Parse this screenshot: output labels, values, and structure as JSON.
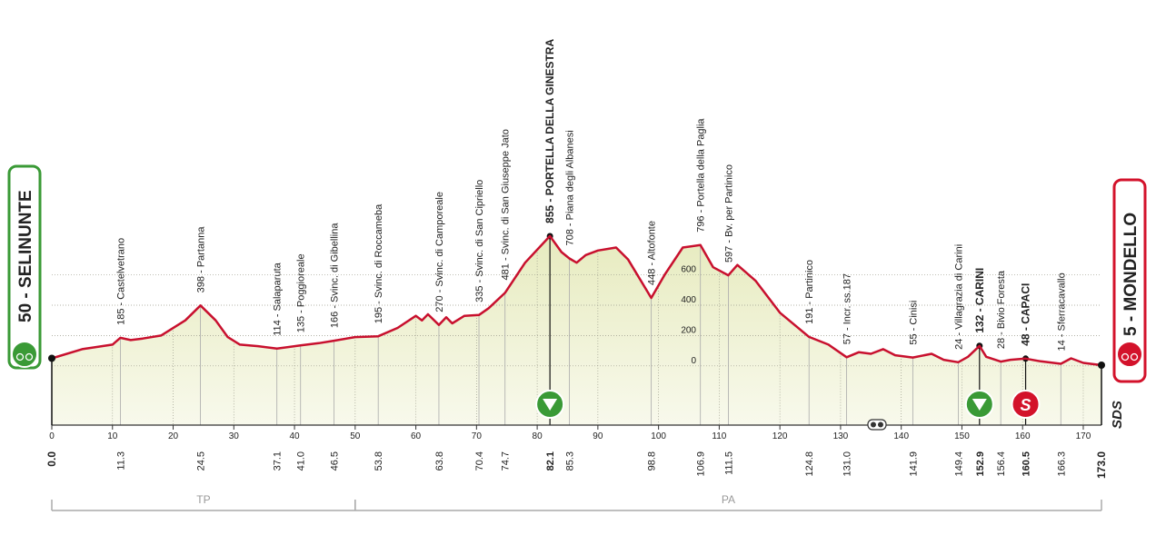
{
  "chart_data": {
    "type": "area",
    "color": "#c8102e",
    "fill": "#eef0d2",
    "xlim": [
      0,
      173
    ],
    "ylim": [
      -390,
      1100
    ],
    "x": [
      0,
      5,
      10,
      11.3,
      13,
      15,
      18,
      22,
      24.5,
      27,
      29,
      31,
      34,
      37.1,
      41,
      44,
      46.5,
      50,
      53.8,
      57,
      60,
      61,
      62,
      63.8,
      65,
      66,
      68,
      70.4,
      72,
      74.7,
      78,
      82.1,
      84,
      85.3,
      86.5,
      88,
      90,
      93,
      95,
      98.8,
      101,
      104,
      106.9,
      109,
      111.5,
      113,
      116,
      120,
      124.8,
      128,
      131,
      133,
      135,
      137,
      139,
      141.9,
      145,
      147,
      149.4,
      151,
      152.9,
      154,
      156.4,
      158,
      160.5,
      163,
      166.3,
      168,
      170,
      173
    ],
    "values": [
      50,
      110,
      140,
      185,
      170,
      180,
      200,
      300,
      398,
      300,
      190,
      140,
      130,
      114,
      135,
      150,
      166,
      190,
      195,
      250,
      330,
      300,
      340,
      270,
      320,
      280,
      330,
      335,
      380,
      481,
      680,
      855,
      750,
      708,
      680,
      730,
      760,
      780,
      700,
      448,
      600,
      780,
      796,
      650,
      597,
      665,
      560,
      350,
      191,
      140,
      57,
      90,
      80,
      110,
      70,
      55,
      80,
      40,
      24,
      60,
      132,
      60,
      28,
      40,
      48,
      30,
      14,
      50,
      20,
      5
    ],
    "xticks": [
      0,
      10,
      20,
      30,
      40,
      50,
      60,
      70,
      80,
      90,
      100,
      110,
      120,
      130,
      140,
      150,
      160,
      170
    ],
    "yticks": [
      0,
      200,
      400,
      600
    ],
    "start": {
      "km": {
        "value": 0,
        "label": "0.0"
      },
      "label": "50 - SELINUNTE",
      "color": "#3a9a36"
    },
    "finish": {
      "km": {
        "value": 173,
        "label": "173.0"
      },
      "label": "5 - MONDELLO",
      "color": "#d3122b"
    },
    "waypoints": [
      {
        "km": 11.3,
        "label": "185 - Castelvetrano"
      },
      {
        "km": 24.5,
        "label": "398 - Partanna"
      },
      {
        "km": 37.1,
        "label": "114 - Salaparuta"
      },
      {
        "km": {
          "value": 41,
          "label": "41.0"
        },
        "label": "135 - Poggioreale"
      },
      {
        "km": 46.5,
        "label": "166 - Svinc. di Gibellina"
      },
      {
        "km": 53.8,
        "label": "195 - Svinc. di Roccameba"
      },
      {
        "km": 63.8,
        "label": "270 - Svinc. di Camporeale"
      },
      {
        "km": 70.4,
        "label": "335 - Svinc. di San Cipriello"
      },
      {
        "km": 74.7,
        "label": "481 - Svinc. di San Giuseppe Jato"
      },
      {
        "km": 82.1,
        "label": "855 - PORTELLA DELLA GINESTRA",
        "bold": true
      },
      {
        "km": 85.3,
        "label": "708 - Piana degli Albanesi"
      },
      {
        "km": 98.8,
        "label": "448 - Altofonte"
      },
      {
        "km": 106.9,
        "label": "796 - Portella della Paglia"
      },
      {
        "km": 111.5,
        "label": "597 - Bv. per Partinico"
      },
      {
        "km": 124.8,
        "label": "191 - Partinico"
      },
      {
        "km": {
          "value": 131,
          "label": "131.0"
        },
        "label": "57 - Incr. ss.187"
      },
      {
        "km": 141.9,
        "label": "55 - Cinisi"
      },
      {
        "km": 149.4,
        "label": "24 - Villagrazia di Carini"
      },
      {
        "km": 152.9,
        "label": "132 - CARINI",
        "bold": true
      },
      {
        "km": 156.4,
        "label": "28 - Bivio Foresta"
      },
      {
        "km": 160.5,
        "label": "48 - CAPACI",
        "bold": true
      },
      {
        "km": 166.3,
        "label": "14 - Sferracavallo"
      }
    ],
    "markers": [
      {
        "km": 82.1,
        "kind": "climb",
        "color": "#3a9a36"
      },
      {
        "km": 152.9,
        "kind": "climb",
        "color": "#3a9a36"
      },
      {
        "km": 160.5,
        "kind": "sprint",
        "color": "#d3122b",
        "label": "S"
      },
      {
        "km": 136,
        "kind": "feed"
      }
    ],
    "regions": [
      {
        "label": "TP",
        "from": 0,
        "to": 50
      },
      {
        "label": "PA",
        "from": 50,
        "to": 173
      }
    ],
    "logo": "SDS"
  }
}
